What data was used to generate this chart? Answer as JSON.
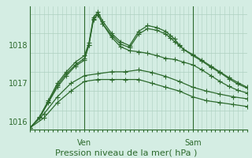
{
  "xlabel": "Pression niveau de la mer( hPa )",
  "bg_color": "#d4ede3",
  "grid_color": "#aed0c0",
  "line_color": "#2d6a2d",
  "marker": "+",
  "markersize": 4,
  "linewidth": 0.9,
  "ylim": [
    1015.8,
    1019.0
  ],
  "yticks": [
    1016,
    1017,
    1018
  ],
  "tick_fontsize": 7,
  "xlabel_fontsize": 8,
  "ven_label": "Ven",
  "sam_label": "Sam",
  "n_hours": 48,
  "ven_hour": 12,
  "sam_hour": 36,
  "series": [
    {
      "x": [
        0,
        3,
        6,
        9,
        12,
        15,
        18,
        21,
        24,
        27,
        30,
        33,
        36,
        39,
        42,
        45,
        48
      ],
      "y": [
        1015.85,
        1016.1,
        1016.5,
        1016.8,
        1017.05,
        1017.1,
        1017.1,
        1017.1,
        1017.1,
        1017.0,
        1016.9,
        1016.8,
        1016.65,
        1016.55,
        1016.5,
        1016.45,
        1016.4
      ]
    },
    {
      "x": [
        0,
        3,
        6,
        9,
        12,
        15,
        18,
        21,
        24,
        27,
        30,
        33,
        36,
        39,
        42,
        45,
        48
      ],
      "y": [
        1015.85,
        1016.2,
        1016.65,
        1017.0,
        1017.2,
        1017.25,
        1017.3,
        1017.3,
        1017.35,
        1017.28,
        1017.18,
        1017.05,
        1016.9,
        1016.8,
        1016.72,
        1016.65,
        1016.6
      ]
    },
    {
      "x": [
        0,
        2,
        4,
        6,
        8,
        10,
        12,
        13,
        14,
        15,
        16,
        18,
        20,
        22,
        24,
        26,
        28,
        30,
        32,
        34,
        36,
        38,
        40,
        42,
        44,
        46,
        48
      ],
      "y": [
        1015.85,
        1016.1,
        1016.5,
        1016.9,
        1017.2,
        1017.45,
        1017.6,
        1018.0,
        1018.65,
        1018.8,
        1018.55,
        1018.2,
        1017.95,
        1017.85,
        1017.82,
        1017.78,
        1017.72,
        1017.65,
        1017.62,
        1017.55,
        1017.48,
        1017.35,
        1017.2,
        1017.05,
        1016.92,
        1016.82,
        1016.75
      ]
    },
    {
      "x": [
        0,
        2,
        4,
        6,
        8,
        10,
        12,
        13,
        14,
        15,
        16,
        18,
        20,
        22,
        24,
        26,
        28,
        30,
        31,
        32,
        33,
        34,
        36,
        38,
        40,
        42,
        44,
        46,
        48
      ],
      "y": [
        1015.85,
        1016.12,
        1016.55,
        1017.0,
        1017.3,
        1017.55,
        1017.72,
        1018.05,
        1018.72,
        1018.85,
        1018.62,
        1018.3,
        1018.08,
        1017.98,
        1018.35,
        1018.5,
        1018.45,
        1018.35,
        1018.25,
        1018.15,
        1018.0,
        1017.88,
        1017.75,
        1017.6,
        1017.45,
        1017.3,
        1017.15,
        1017.02,
        1016.9
      ]
    },
    {
      "x": [
        0,
        2,
        4,
        6,
        8,
        10,
        12,
        13,
        14,
        15,
        16,
        18,
        20,
        22,
        24,
        26,
        28,
        30,
        31,
        32,
        33,
        34,
        36,
        38,
        40,
        42,
        44,
        46,
        48
      ],
      "y": [
        1015.85,
        1016.1,
        1016.52,
        1016.95,
        1017.25,
        1017.48,
        1017.65,
        1018.0,
        1018.68,
        1018.78,
        1018.55,
        1018.25,
        1018.02,
        1017.93,
        1018.28,
        1018.42,
        1018.38,
        1018.28,
        1018.18,
        1018.08,
        1017.98,
        1017.88,
        1017.72,
        1017.58,
        1017.42,
        1017.28,
        1017.12,
        1016.98,
        1016.88
      ]
    }
  ]
}
